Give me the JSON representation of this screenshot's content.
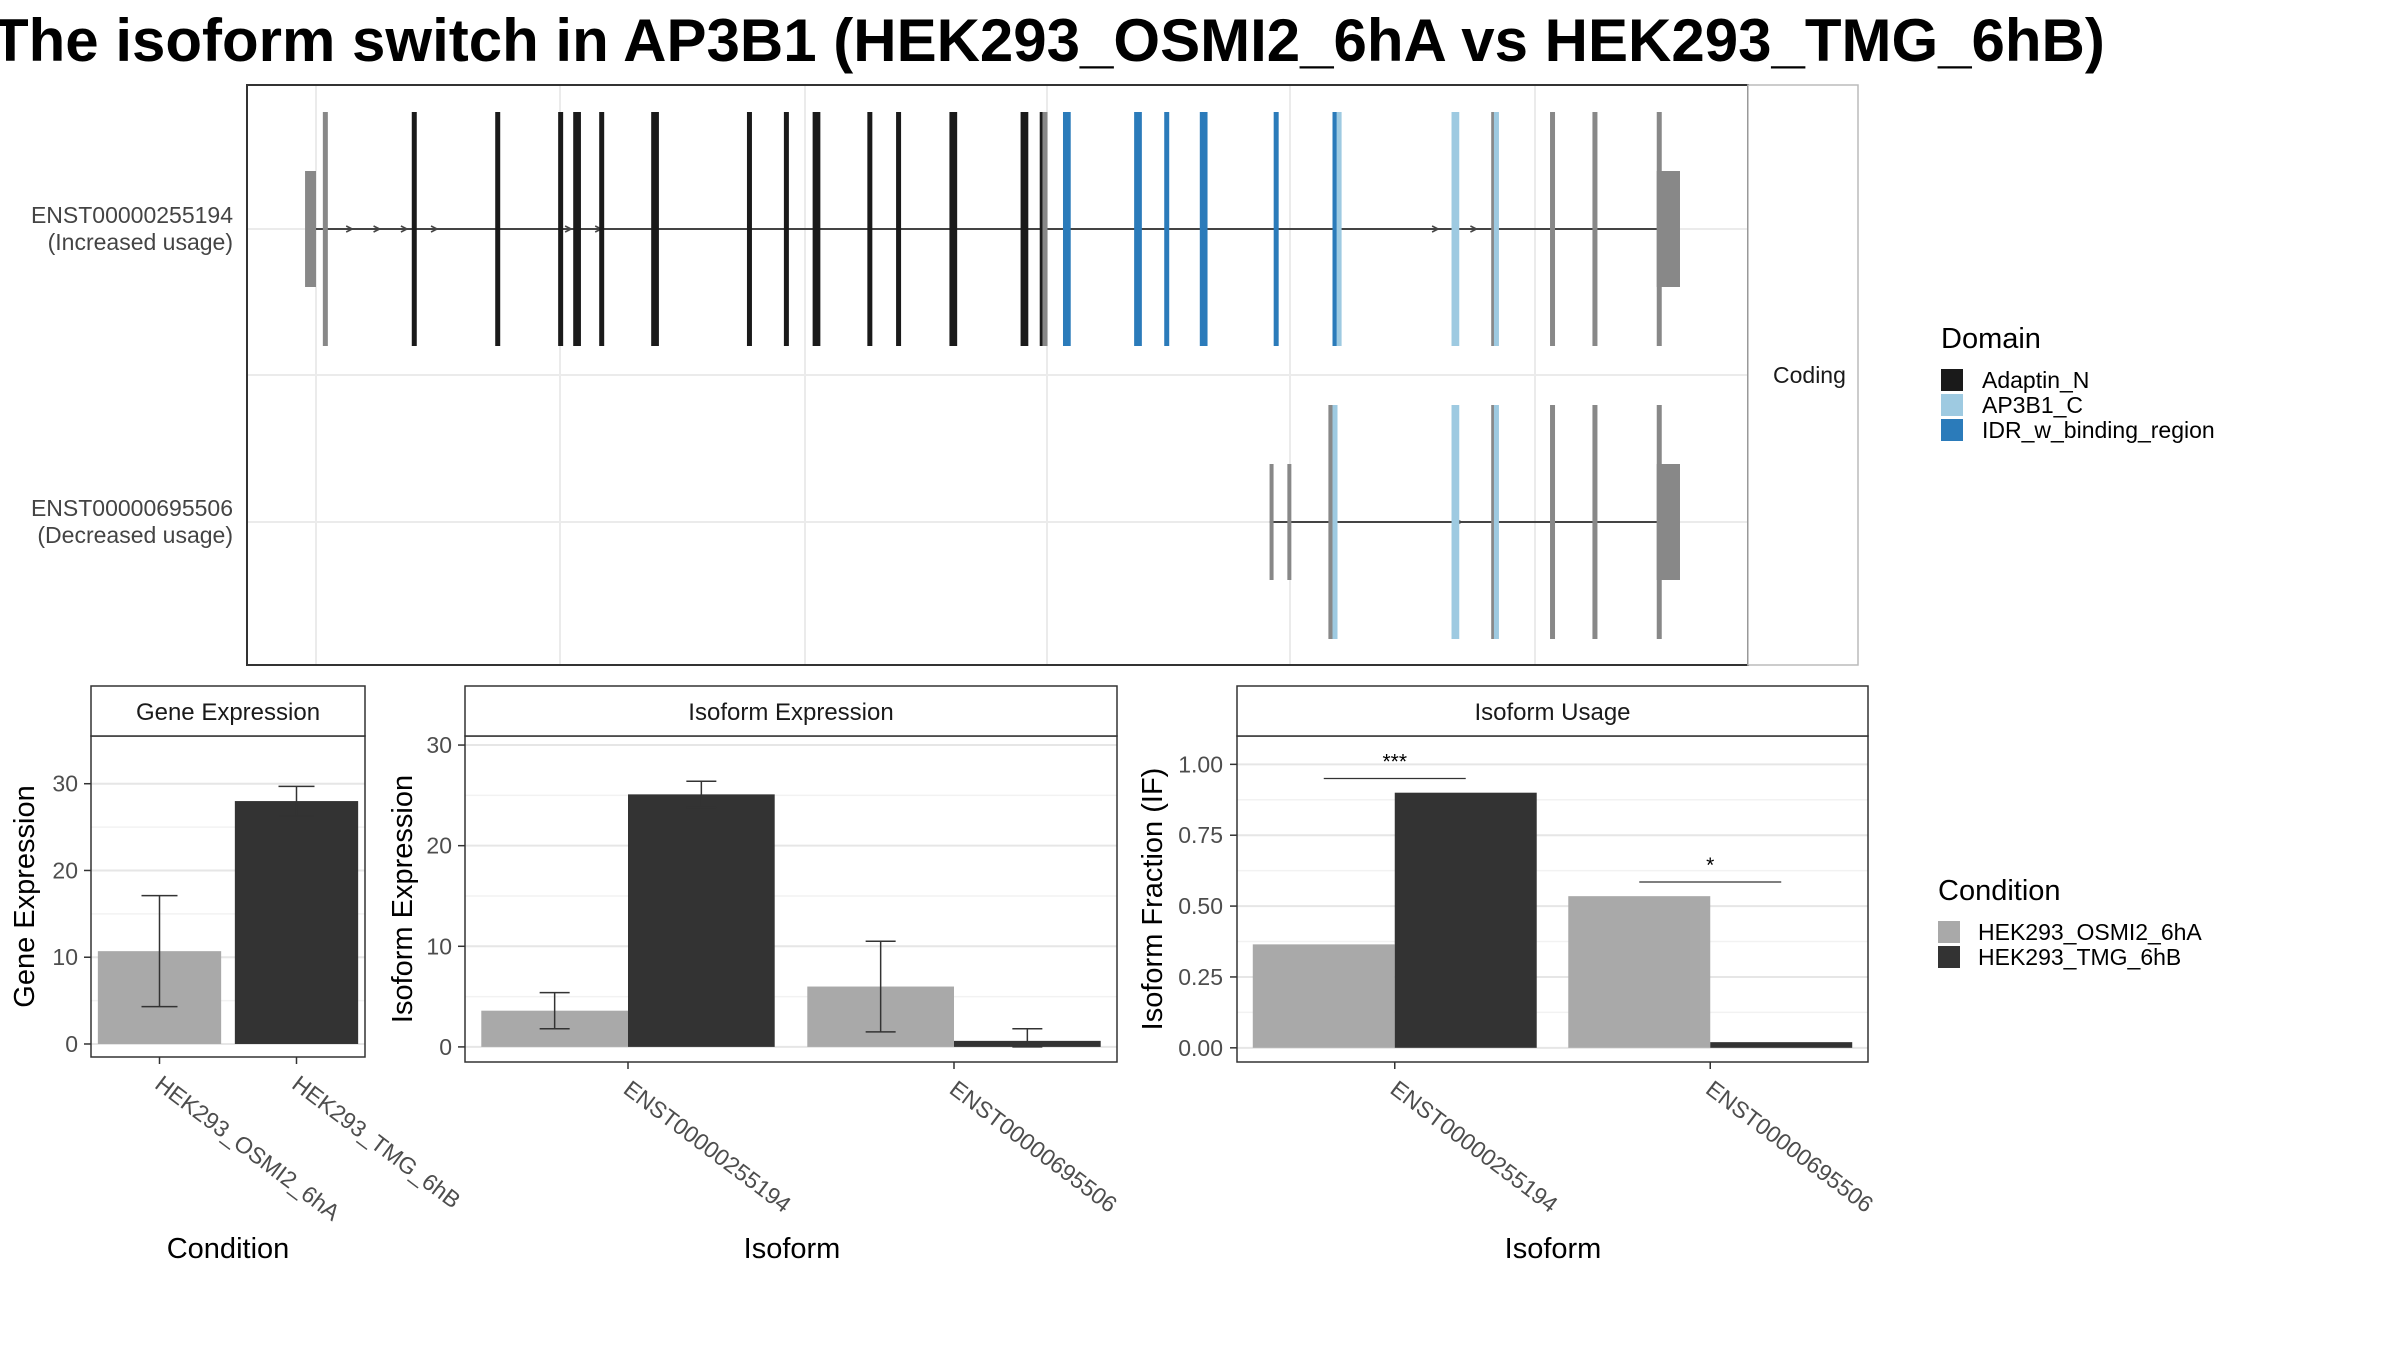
{
  "title": "The isoform switch in AP3B1 (HEK293_OSMI2_6hA vs HEK293_TMG_6hB)",
  "colors": {
    "condition_a": "#a9a9a9",
    "condition_b": "#333333",
    "Adaptin_N": "#1a1a1a",
    "AP3B1_C": "#9ecae1",
    "IDR_w_binding_region": "#2b7bba",
    "non_domain_exon": "#888888"
  },
  "structure_panel": {
    "strip_label": "Coding",
    "transcripts": [
      {
        "id": "ENST00000255194",
        "usage": "(Increased usage)"
      },
      {
        "id": "ENST00000695506",
        "usage": "(Decreased usage)"
      }
    ],
    "domain_legend": {
      "title": "Domain",
      "items": [
        "Adaptin_N",
        "AP3B1_C",
        "IDR_w_binding_region"
      ]
    }
  },
  "condition_legend": {
    "title": "Condition",
    "items": [
      "HEK293_OSMI2_6hA",
      "HEK293_TMG_6hB"
    ]
  },
  "chart_data": [
    {
      "type": "gene-structure",
      "x_range": [
        0,
        1
      ],
      "transcripts": [
        {
          "id": "ENST00000255194",
          "label2": "(Increased usage)",
          "row": 0,
          "intron_start": 0.0,
          "intron_end": 0.987,
          "utr": [
            [
              -0.008,
              0.0
            ],
            [
              0.98,
              0.997
            ]
          ],
          "exons": [
            {
              "pos": 0.005,
              "domain": "none"
            },
            {
              "pos": 0.07,
              "domain": "Adaptin_N"
            },
            {
              "pos": 0.131,
              "domain": "Adaptin_N"
            },
            {
              "pos": 0.177,
              "domain": "Adaptin_N"
            },
            {
              "pos": 0.188,
              "domain": "Adaptin_N"
            },
            {
              "pos": 0.19,
              "domain": "Adaptin_N"
            },
            {
              "pos": 0.207,
              "domain": "Adaptin_N"
            },
            {
              "pos": 0.245,
              "domain": "Adaptin_N"
            },
            {
              "pos": 0.247,
              "domain": "Adaptin_N"
            },
            {
              "pos": 0.315,
              "domain": "Adaptin_N"
            },
            {
              "pos": 0.342,
              "domain": "Adaptin_N"
            },
            {
              "pos": 0.363,
              "domain": "Adaptin_N"
            },
            {
              "pos": 0.365,
              "domain": "Adaptin_N"
            },
            {
              "pos": 0.403,
              "domain": "Adaptin_N"
            },
            {
              "pos": 0.424,
              "domain": "Adaptin_N"
            },
            {
              "pos": 0.463,
              "domain": "Adaptin_N"
            },
            {
              "pos": 0.465,
              "domain": "Adaptin_N"
            },
            {
              "pos": 0.515,
              "domain": "Adaptin_N"
            },
            {
              "pos": 0.517,
              "domain": "Adaptin_N"
            },
            {
              "pos": 0.529,
              "domain": "Adaptin_N"
            },
            {
              "pos": 0.531,
              "domain": "none"
            },
            {
              "pos": 0.546,
              "domain": "IDR_w_binding_region"
            },
            {
              "pos": 0.548,
              "domain": "IDR_w_binding_region"
            },
            {
              "pos": 0.598,
              "domain": "IDR_w_binding_region"
            },
            {
              "pos": 0.6,
              "domain": "IDR_w_binding_region"
            },
            {
              "pos": 0.62,
              "domain": "IDR_w_binding_region"
            },
            {
              "pos": 0.646,
              "domain": "IDR_w_binding_region"
            },
            {
              "pos": 0.648,
              "domain": "IDR_w_binding_region"
            },
            {
              "pos": 0.7,
              "domain": "IDR_w_binding_region"
            },
            {
              "pos": 0.743,
              "domain": "IDR_w_binding_region"
            },
            {
              "pos": 0.746,
              "domain": "AP3B1_C"
            },
            {
              "pos": 0.83,
              "domain": "AP3B1_C"
            },
            {
              "pos": 0.832,
              "domain": "AP3B1_C"
            },
            {
              "pos": 0.859,
              "domain": "none"
            },
            {
              "pos": 0.861,
              "domain": "AP3B1_C"
            },
            {
              "pos": 0.902,
              "domain": "none"
            },
            {
              "pos": 0.933,
              "domain": "none"
            },
            {
              "pos": 0.98,
              "domain": "none"
            }
          ]
        },
        {
          "id": "ENST00000695506",
          "label2": "(Decreased usage)",
          "row": 1,
          "intron_start": 0.697,
          "intron_end": 0.987,
          "utr": [
            [
              0.98,
              0.997
            ]
          ],
          "utr_left_marks": [
            0.697,
            0.71
          ],
          "exons": [
            {
              "pos": 0.74,
              "domain": "none"
            },
            {
              "pos": 0.743,
              "domain": "AP3B1_C"
            },
            {
              "pos": 0.83,
              "domain": "AP3B1_C"
            },
            {
              "pos": 0.832,
              "domain": "AP3B1_C"
            },
            {
              "pos": 0.859,
              "domain": "none"
            },
            {
              "pos": 0.861,
              "domain": "AP3B1_C"
            },
            {
              "pos": 0.902,
              "domain": "none"
            },
            {
              "pos": 0.933,
              "domain": "none"
            },
            {
              "pos": 0.98,
              "domain": "none"
            }
          ]
        }
      ]
    },
    {
      "type": "bar",
      "panel": "Gene Expression",
      "xlabel": "Condition",
      "ylabel": "Gene Expression",
      "categories": [
        "HEK293_OSMI2_6hA",
        "HEK293_TMG_6hB"
      ],
      "values": [
        10.7,
        28.0
      ],
      "error_low": [
        4.3,
        26.3
      ],
      "error_high": [
        17.1,
        29.7
      ],
      "ylim": [
        -1.5,
        35.5
      ],
      "yticks": [
        0,
        10,
        20,
        30
      ],
      "grid": true
    },
    {
      "type": "bar",
      "panel": "Isoform Expression",
      "xlabel": "Isoform",
      "ylabel": "Isoform Expression",
      "categories": [
        "ENST00000255194",
        "ENST00000695506"
      ],
      "series": [
        {
          "name": "HEK293_OSMI2_6hA",
          "values": [
            3.6,
            6.0
          ],
          "error_low": [
            1.8,
            1.5
          ],
          "error_high": [
            5.4,
            10.5
          ]
        },
        {
          "name": "HEK293_TMG_6hB",
          "values": [
            25.1,
            0.6
          ],
          "error_low": [
            23.8,
            0.0
          ],
          "error_high": [
            26.4,
            1.8
          ]
        }
      ],
      "ylim": [
        -1.5,
        30.9
      ],
      "yticks": [
        0,
        10,
        20,
        30
      ],
      "grid": true
    },
    {
      "type": "bar",
      "panel": "Isoform Usage",
      "xlabel": "Isoform",
      "ylabel": "Isoform Fraction (IF)",
      "categories": [
        "ENST00000255194",
        "ENST00000695506"
      ],
      "series": [
        {
          "name": "HEK293_OSMI2_6hA",
          "values": [
            0.365,
            0.535
          ]
        },
        {
          "name": "HEK293_TMG_6hB",
          "values": [
            0.9,
            0.02
          ]
        }
      ],
      "significance": [
        "***",
        "*"
      ],
      "ylim": [
        -0.05,
        1.1
      ],
      "yticks": [
        0.0,
        0.25,
        0.5,
        0.75,
        1.0
      ],
      "ytick_labels": [
        "0.00",
        "0.25",
        "0.50",
        "0.75",
        "1.00"
      ],
      "grid": true
    }
  ]
}
